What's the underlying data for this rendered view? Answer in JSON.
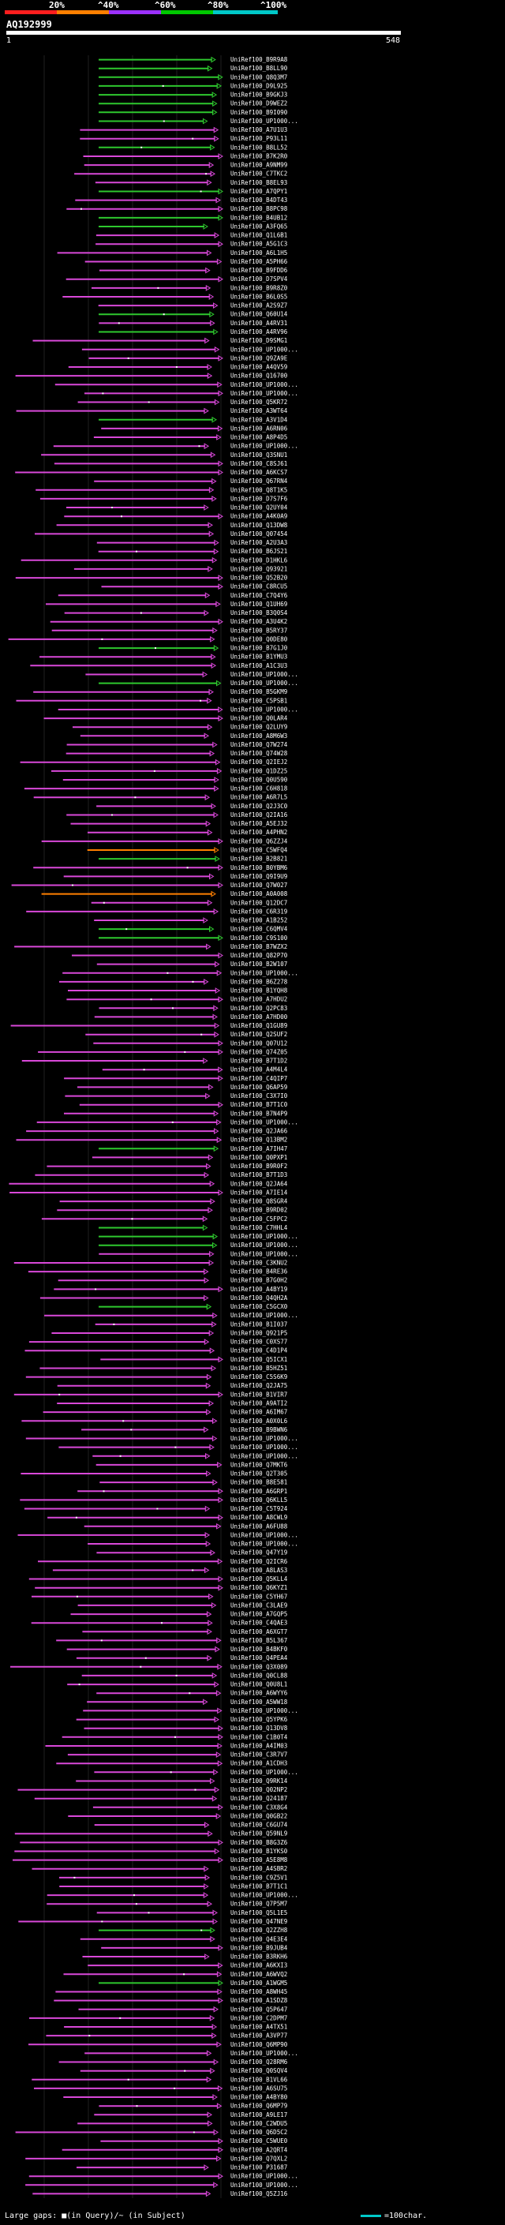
{
  "scale": {
    "labels": [
      "20%",
      "^40%",
      "^60%",
      "^80%",
      "^100%"
    ],
    "colors": [
      "#ff1e1e",
      "#ff7f00",
      "#9b30ff",
      "#00c800",
      "#00c8c8"
    ]
  },
  "query": {
    "name": "AQ192999",
    "start": "1",
    "end": "548"
  },
  "colors": {
    "magenta": "#d948d9",
    "green": "#2ec82e",
    "orange": "#ff7f00",
    "gap": "#ffffff"
  },
  "hits": [
    "UniRef100_B9R9A8",
    "UniRef100_B8LL90",
    "UniRef100_Q8Q3M7",
    "UniRef100_D9L925",
    "UniRef100_B9GKJ3",
    "UniRef100_D9WEZ2",
    "UniRef100_B9I090",
    "UniRef100_UP1000...",
    "UniRef100_A7U1U3",
    "UniRef100_P93L11",
    "UniRef100_B8LL52",
    "UniRef100_B7K2R0",
    "UniRef100_A9NM99",
    "UniRef100_C7TKC2",
    "UniRef100_B8EL93",
    "UniRef100_A7QPY1",
    "UniRef100_B4DT43",
    "UniRef100_B8PC98",
    "UniRef100_B4UB12",
    "UniRef100_A3FQ65",
    "UniRef100_Q1L6B1",
    "UniRef100_A5G1C3",
    "UniRef100_A6L1H5",
    "UniRef100_A5PH66",
    "UniRef100_B9FDD6",
    "UniRef100_D7SPV4",
    "UniRef100_B9R8Z0",
    "UniRef100_B6L0S5",
    "UniRef100_A2S9Z7",
    "UniRef100_Q60U14",
    "UniRef100_A4RV31",
    "UniRef100_A4RV96",
    "UniRef100_D9SMG1",
    "UniRef100_UP1000...",
    "UniRef100_Q9ZA9E",
    "UniRef100_A4QV59",
    "UniRef100_Q16700",
    "UniRef100_UP1000...",
    "UniRef100_UP1000...",
    "UniRef100_Q5KR72",
    "UniRef100_A3WT64",
    "UniRef100_A3V1D4",
    "UniRef100_A6RN06",
    "UniRef100_A8P4D5",
    "UniRef100_UP1000...",
    "UniRef100_Q3SNU1",
    "UniRef100_C8SJ61",
    "UniRef100_A6KCS7",
    "UniRef100_Q67RN4",
    "UniRef100_Q8T1K5",
    "UniRef100_D7S7F6",
    "UniRef100_Q2UY04",
    "UniRef100_A4K0A9",
    "UniRef100_Q13DW8",
    "UniRef100_Q07454",
    "UniRef100_A2U3A3",
    "UniRef100_B6JS21",
    "UniRef100_D1HKL6",
    "UniRef100_Q93921",
    "UniRef100_Q52B20",
    "UniRef100_C8RCU5",
    "UniRef100_C7Q4Y6",
    "UniRef100_Q1UH69",
    "UniRef100_B3Q0S4",
    "UniRef100_A3U4K2",
    "UniRef100_B5RY37",
    "UniRef100_Q0DE80",
    "UniRef100_B7G1J0",
    "UniRef100_B1YMU3",
    "UniRef100_A1C3U3",
    "UniRef100_UP1000...",
    "UniRef100_UP1000...",
    "UniRef100_B5GKM9",
    "UniRef100_C5PSB1",
    "UniRef100_UP1000...",
    "UniRef100_Q0LAR4",
    "UniRef100_Q2LUY9",
    "UniRef100_A8M6W3",
    "UniRef100_Q7W274",
    "UniRef100_Q74W28",
    "UniRef100_Q2IEJ2",
    "UniRef100_Q1DZ25",
    "UniRef100_Q0U590",
    "UniRef100_C6H818",
    "UniRef100_A6R7L5",
    "UniRef100_Q2J3C0",
    "UniRef100_Q2IA16",
    "UniRef100_A5EJ32",
    "UniRef100_A4PHN2",
    "UniRef100_Q6ZZJ4",
    "UniRef100_C5WFQ4",
    "UniRef100_B2B821",
    "UniRef100_B0YBM6",
    "UniRef100_Q9I9U9",
    "UniRef100_Q7W027",
    "UniRef100_A0A008",
    "UniRef100_Q12DC7",
    "UniRef100_C6R319",
    "UniRef100_A1B252",
    "UniRef100_C6QMV4",
    "UniRef100_C9S100",
    "UniRef100_B7WZX2",
    "UniRef100_Q82P70",
    "UniRef100_B2W107",
    "UniRef100_UP1000...",
    "UniRef100_B6Z278",
    "UniRef100_B1YQH8",
    "UniRef100_A7HDU2",
    "UniRef100_Q2PC83",
    "UniRef100_A7HD00",
    "UniRef100_Q1GU89",
    "UniRef100_Q2SUF2",
    "UniRef100_Q07U12",
    "UniRef100_Q74Z05",
    "UniRef100_B7T1D2",
    "UniRef100_A4M4L4",
    "UniRef100_C4QIP7",
    "UniRef100_Q6AP59",
    "UniRef100_C3X7I0",
    "UniRef100_B7T1C0",
    "UniRef100_B7N4P9",
    "UniRef100_UP1000...",
    "UniRef100_Q2JA66",
    "UniRef100_Q13BM2",
    "UniRef100_A7IH47",
    "UniRef100_Q0PXP1",
    "UniRef100_B9R0F2",
    "UniRef100_B7T1D3",
    "UniRef100_Q2JA64",
    "UniRef100_A7IE14",
    "UniRef100_Q8SGR4",
    "UniRef100_B9RD02",
    "UniRef100_C5FPC2",
    "UniRef100_C7HHL4",
    "UniRef100_UP1000...",
    "UniRef100_UP1000...",
    "UniRef100_UP1000...",
    "UniRef100_C3KNU2",
    "UniRef100_B4RE36",
    "UniRef100_B7G0H2",
    "UniRef100_A4BY19",
    "UniRef100_Q4QH2A",
    "UniRef100_C5GCX0",
    "UniRef100_UP1000...",
    "UniRef100_B1I037",
    "UniRef100_Q921P5",
    "UniRef100_C0XS77",
    "UniRef100_C4D1P4",
    "UniRef100_Q5ICX1",
    "UniRef100_B5HZ51",
    "UniRef100_C5S6K9",
    "UniRef100_Q2JA75",
    "UniRef100_B1VIR7",
    "UniRef100_A9ATI2",
    "UniRef100_A6IM67",
    "UniRef100_A0X0L6",
    "UniRef100_B9BWN6",
    "UniRef100_UP1000...",
    "UniRef100_UP1000...",
    "UniRef100_UP1000...",
    "UniRef100_Q7MKT6",
    "UniRef100_Q2T305",
    "UniRef100_B8E581",
    "UniRef100_A6GRP1",
    "UniRef100_Q6KLL5",
    "UniRef100_C5T924",
    "UniRef100_A8CWL9",
    "UniRef100_A6FU88",
    "UniRef100_UP1000...",
    "UniRef100_UP1000...",
    "UniRef100_Q47Y19",
    "UniRef100_Q2ICR6",
    "UniRef100_A8LAS3",
    "UniRef100_Q5KLL4",
    "UniRef100_Q6KYZ1",
    "UniRef100_C5YH67",
    "UniRef100_C3LAE9",
    "UniRef100_A7GQP5",
    "UniRef100_C4QAE3",
    "UniRef100_A6XGT7",
    "UniRef100_B5L367",
    "UniRef100_B4BKF0",
    "UniRef100_Q4PEA4",
    "UniRef100_Q3X089",
    "UniRef100_Q0CL88",
    "UniRef100_Q0U8L1",
    "UniRef100_A6WYY6",
    "UniRef100_A5WW18",
    "UniRef100_UP1000...",
    "UniRef100_Q5YPK6",
    "UniRef100_Q13DV8",
    "UniRef100_C1B0T4",
    "UniRef100_A4IM03",
    "UniRef100_C3R7V7",
    "UniRef100_A1CDH3",
    "UniRef100_UP1000...",
    "UniRef100_Q9RK14",
    "UniRef100_Q02NP2",
    "UniRef100_Q24187",
    "UniRef100_C3X8G4",
    "UniRef100_Q0GB22",
    "UniRef100_C6GU74",
    "UniRef100_Q59NL9",
    "UniRef100_B8G3Z6",
    "UniRef100_B1YKS0",
    "UniRef100_A5E8M8",
    "UniRef100_A4SBR2",
    "UniRef100_C9Z5V1",
    "UniRef100_B7T1C1",
    "UniRef100_UP1000...",
    "UniRef100_Q7P5M7",
    "UniRef100_Q5L1E5",
    "UniRef100_Q47NE9",
    "UniRef100_Q2ZZH8",
    "UniRef100_Q4E3E4",
    "UniRef100_B9JUB4",
    "UniRef100_B3RKH6",
    "UniRef100_A6KXI3",
    "UniRef100_A6WVQ2",
    "UniRef100_A1WGM5",
    "UniRef100_A8WH45",
    "UniRef100_A1SDZ8",
    "UniRef100_Q5P647",
    "UniRef100_C2DPM7",
    "UniRef100_A4TX51",
    "UniRef100_A3VP77",
    "UniRef100_Q6MP90",
    "UniRef100_UP1000...",
    "UniRef100_Q28RM6",
    "UniRef100_Q0SQV4",
    "UniRef100_B1VL66",
    "UniRef100_A6SU75",
    "UniRef100_A4BY80",
    "UniRef100_Q6MP79",
    "UniRef100_A9LE17",
    "UniRef100_C2WDU5",
    "UniRef100_Q6D5C2",
    "UniRef100_C5WUE0",
    "UniRef100_A2QRT4",
    "UniRef100_Q7QXL2",
    "UniRef100_P31687",
    "UniRef100_UP1000...",
    "UniRef100_UP1000...",
    "UniRef100_Q5ZJ16"
  ],
  "footer": {
    "gaps": "Large gaps: ■(in Query)/~ (in Subject)",
    "legend": "=100char."
  }
}
